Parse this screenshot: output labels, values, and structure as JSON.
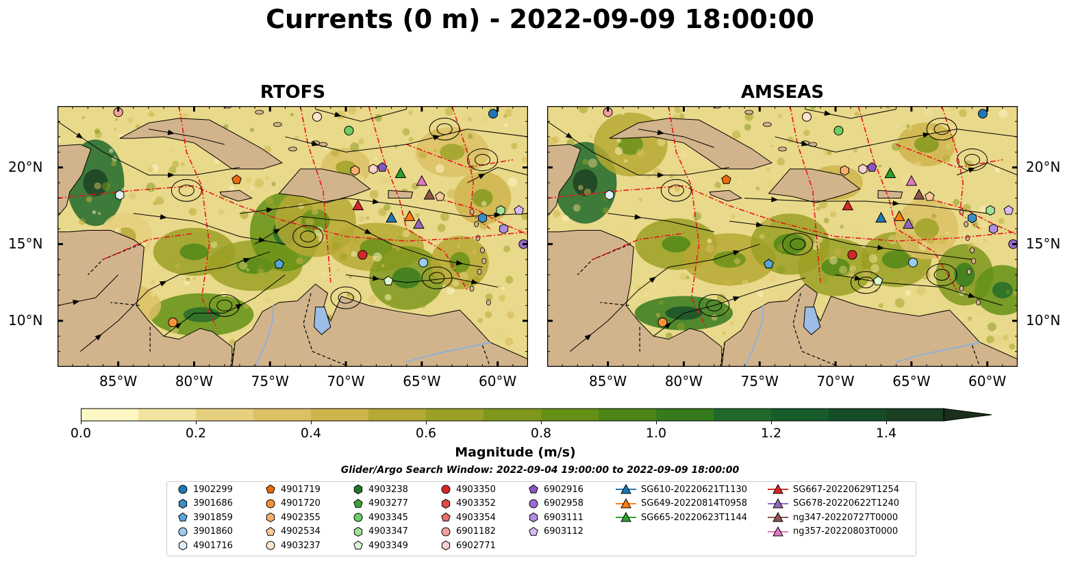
{
  "title": "Currents (0 m) - 2022-09-09 18:00:00",
  "panels": [
    {
      "title": "RTOFS"
    },
    {
      "title": "AMSEAS"
    }
  ],
  "axes": {
    "lon_ticks": [
      "85°W",
      "80°W",
      "75°W",
      "70°W",
      "65°W",
      "60°W"
    ],
    "lat_ticks": [
      "20°N",
      "15°N",
      "10°N"
    ],
    "lon_range": [
      -89,
      -58
    ],
    "lat_range": [
      7,
      24
    ]
  },
  "colorbar": {
    "label": "Magnitude (m/s)",
    "ticks": [
      "0.0",
      "0.2",
      "0.4",
      "0.6",
      "0.8",
      "1.0",
      "1.2",
      "1.4"
    ],
    "range": [
      0,
      1.5
    ],
    "extend": "max",
    "colors": [
      "#fdf7c3",
      "#f2e4a0",
      "#e6cf7e",
      "#dcc064",
      "#cfb44c",
      "#b6a834",
      "#9aa024",
      "#7f971d",
      "#649016",
      "#4c8617",
      "#357a1d",
      "#20692a",
      "#175c2a",
      "#154d28",
      "#1a3f22",
      "#1b2f1a"
    ]
  },
  "search_window": "Glider/Argo Search Window: 2022-09-04 19:00:00 to 2022-09-09 18:00:00",
  "legend_items": [
    {
      "label": "1902299",
      "marker": "circle",
      "color": "#1f77b4"
    },
    {
      "label": "3901686",
      "marker": "hexagon",
      "color": "#3b8dc6"
    },
    {
      "label": "3901859",
      "marker": "pentagon",
      "color": "#5aa4dc"
    },
    {
      "label": "3901860",
      "marker": "circle",
      "color": "#9ccaf0"
    },
    {
      "label": "4901716",
      "marker": "hexagon",
      "color": "#dff0fb"
    },
    {
      "label": "4901719",
      "marker": "pentagon",
      "color": "#e86c0b"
    },
    {
      "label": "4901720",
      "marker": "circle",
      "color": "#f5913a"
    },
    {
      "label": "4902355",
      "marker": "hexagon",
      "color": "#f8b070"
    },
    {
      "label": "4902534",
      "marker": "pentagon",
      "color": "#fbc99b"
    },
    {
      "label": "4903237",
      "marker": "circle",
      "color": "#fde4cc"
    },
    {
      "label": "4903238",
      "marker": "hexagon",
      "color": "#1e7a2a"
    },
    {
      "label": "4903277",
      "marker": "pentagon",
      "color": "#3aa33e"
    },
    {
      "label": "4903345",
      "marker": "circle",
      "color": "#6cce63"
    },
    {
      "label": "4903347",
      "marker": "hexagon",
      "color": "#9fe39a"
    },
    {
      "label": "4903349",
      "marker": "pentagon",
      "color": "#d8f8d2"
    },
    {
      "label": "4903350",
      "marker": "circle",
      "color": "#d62728"
    },
    {
      "label": "4903352",
      "marker": "hexagon",
      "color": "#e24a4b"
    },
    {
      "label": "4903354",
      "marker": "pentagon",
      "color": "#ec6e6d"
    },
    {
      "label": "6901182",
      "marker": "circle",
      "color": "#f4a09e"
    },
    {
      "label": "6902771",
      "marker": "hexagon",
      "color": "#fbd0cf"
    },
    {
      "label": "6902916",
      "marker": "pentagon",
      "color": "#8a57c0"
    },
    {
      "label": "6902958",
      "marker": "circle",
      "color": "#9a6bd0"
    },
    {
      "label": "6903111",
      "marker": "hexagon",
      "color": "#b08ee0"
    },
    {
      "label": "6903112",
      "marker": "pentagon",
      "color": "#d6bcf4"
    },
    {
      "label": "SG610-20220621T1130",
      "marker": "triangle",
      "color": "#1f77b4"
    },
    {
      "label": "SG649-20220814T0958",
      "marker": "triangle",
      "color": "#ff7f0e"
    },
    {
      "label": "SG665-20220623T1144",
      "marker": "triangle",
      "color": "#2ca02c"
    },
    {
      "label": "SG667-20220629T1254",
      "marker": "triangle",
      "color": "#d62728"
    },
    {
      "label": "SG678-20220622T1240",
      "marker": "triangle",
      "color": "#9467bd"
    },
    {
      "label": "ng347-20220727T0000",
      "marker": "triangle",
      "color": "#8c564b"
    },
    {
      "label": "ng357-20220803T0000",
      "marker": "triangle",
      "color": "#e377c2"
    }
  ],
  "observations": [
    {
      "id": "1902299",
      "lon": -60.3,
      "lat": 23.5
    },
    {
      "id": "4903237",
      "lon": -71.9,
      "lat": 23.3
    },
    {
      "id": "4903345",
      "lon": -69.8,
      "lat": 22.4
    },
    {
      "id": "6901182",
      "lon": -85.0,
      "lat": 23.6
    },
    {
      "id": "4902355",
      "lon": -69.4,
      "lat": 19.8
    },
    {
      "id": "6902771",
      "lon": -68.2,
      "lat": 19.9
    },
    {
      "id": "6902916",
      "lon": -67.6,
      "lat": 20.0
    },
    {
      "id": "SG665-20220623T1144",
      "lon": -66.4,
      "lat": 19.6
    },
    {
      "id": "ng357-20220803T0000",
      "lon": -65.0,
      "lat": 19.1
    },
    {
      "id": "4901719",
      "lon": -77.2,
      "lat": 19.2
    },
    {
      "id": "4901716",
      "lon": -84.9,
      "lat": 18.2
    },
    {
      "id": "ng347-20220727T0000",
      "lon": -64.5,
      "lat": 18.2
    },
    {
      "id": "4902534",
      "lon": -63.8,
      "lat": 18.1
    },
    {
      "id": "SG667-20220629T1254",
      "lon": -69.2,
      "lat": 17.5
    },
    {
      "id": "4903347",
      "lon": -59.8,
      "lat": 17.2
    },
    {
      "id": "6903112",
      "lon": -58.6,
      "lat": 17.2
    },
    {
      "id": "SG610-20220621T1130",
      "lon": -67.0,
      "lat": 16.7
    },
    {
      "id": "SG649-20220814T0958",
      "lon": -65.8,
      "lat": 16.8
    },
    {
      "id": "SG678-20220622T1240",
      "lon": -65.2,
      "lat": 16.3
    },
    {
      "id": "3901686",
      "lon": -61.0,
      "lat": 16.7
    },
    {
      "id": "6903111",
      "lon": -59.6,
      "lat": 16.0
    },
    {
      "id": "6902958",
      "lon": -58.3,
      "lat": 15.0
    },
    {
      "id": "3901859",
      "lon": -74.4,
      "lat": 13.7
    },
    {
      "id": "4903350",
      "lon": -68.9,
      "lat": 14.3
    },
    {
      "id": "3901860",
      "lon": -64.9,
      "lat": 13.8
    },
    {
      "id": "4903349",
      "lon": -67.2,
      "lat": 12.6
    },
    {
      "id": "4901720",
      "lon": -81.4,
      "lat": 9.9
    }
  ]
}
